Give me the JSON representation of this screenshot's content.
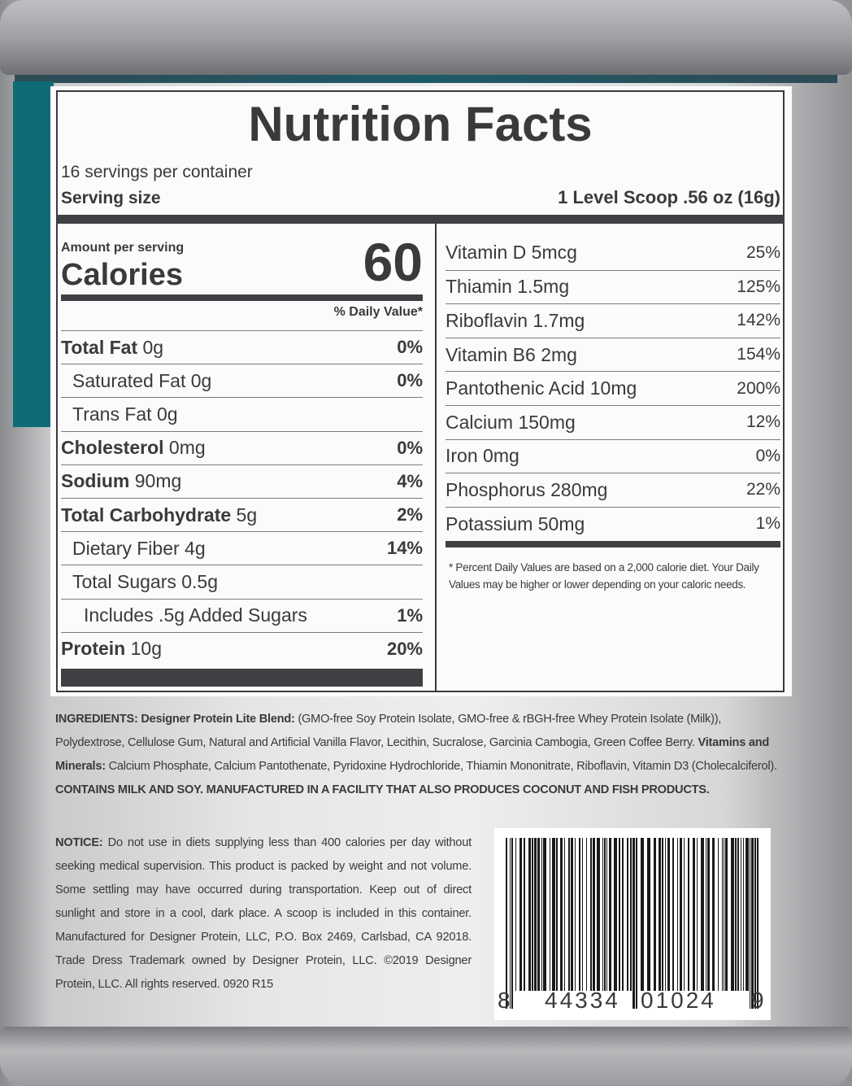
{
  "title": "Nutrition Facts",
  "servings": "16 servings per container",
  "serving_size": {
    "label": "Serving size",
    "value": "1 Level Scoop .56 oz (16g)"
  },
  "amount_per_serving": "Amount per serving",
  "calories": {
    "label": "Calories",
    "value": 60
  },
  "daily_value_header": "% Daily Value*",
  "nutrients": [
    {
      "name": "Total Fat",
      "amount": "0g",
      "dv": "0%",
      "bold": true,
      "indent": 0
    },
    {
      "name": "Saturated Fat",
      "amount": "0g",
      "dv": "0%",
      "bold": false,
      "indent": 1
    },
    {
      "name": "Trans Fat",
      "amount": "0g",
      "bold": false,
      "indent": 1
    },
    {
      "name": "Cholesterol",
      "amount": "0mg",
      "dv": "0%",
      "bold": true,
      "indent": 0
    },
    {
      "name": "Sodium",
      "amount": "90mg",
      "dv": "4%",
      "bold": true,
      "indent": 0
    },
    {
      "name": "Total Carbohydrate",
      "amount": "5g",
      "dv": "2%",
      "bold": true,
      "indent": 0
    },
    {
      "name": "Dietary Fiber",
      "amount": "4g",
      "dv": "14%",
      "bold": false,
      "indent": 1
    },
    {
      "name": "Total Sugars",
      "amount": "0.5g",
      "bold": false,
      "indent": 1
    },
    {
      "name": "Includes .5g Added Sugars",
      "amount": "",
      "dv": "1%",
      "bold": false,
      "indent": 2
    },
    {
      "name": "Protein",
      "amount": "10g",
      "dv": "20%",
      "bold": true,
      "indent": 0
    }
  ],
  "vitamins": [
    {
      "name": "Vitamin D",
      "amount": "5mcg",
      "dv": "25%"
    },
    {
      "name": "Thiamin",
      "amount": "1.5mg",
      "dv": "125%"
    },
    {
      "name": "Riboflavin",
      "amount": "1.7mg",
      "dv": "142%"
    },
    {
      "name": "Vitamin B6",
      "amount": "2mg",
      "dv": "154%"
    },
    {
      "name": "Pantothenic Acid",
      "amount": "10mg",
      "dv": "200%"
    },
    {
      "name": "Calcium",
      "amount": "150mg",
      "dv": "12%"
    },
    {
      "name": "Iron",
      "amount": "0mg",
      "dv": "0%"
    },
    {
      "name": "Phosphorus",
      "amount": "280mg",
      "dv": "22%"
    },
    {
      "name": "Potassium",
      "amount": "50mg",
      "dv": "1%"
    }
  ],
  "footnote": "* Percent Daily Values are based on a 2,000 calorie diet. Your Daily Values may be higher or lower depending on your caloric needs.",
  "ingredients": [
    {
      "text": "INGREDIENTS: Designer Protein Lite Blend:",
      "bold": true
    },
    {
      "text": " (GMO-free Soy Protein Isolate, GMO-free & rBGH-free Whey Protein Isolate (Milk)), Polydextrose, Cellulose Gum, Natural and Artificial Vanilla Flavor, Lecithin, Sucralose, Garcinia Cambogia, Green Coffee Berry. ",
      "bold": false
    },
    {
      "text": "Vitamins and Minerals:",
      "bold": true
    },
    {
      "text": " Calcium Phosphate, Calcium Pantothenate, Pyridoxine Hydrochloride, Thiamin Mononitrate, Riboflavin, Vitamin D3 (Cholecalciferol). ",
      "bold": false
    },
    {
      "text": "CONTAINS MILK AND SOY. MANUFACTURED IN A FACILITY THAT ALSO PRODUCES COCONUT AND FISH PRODUCTS.",
      "bold": true
    }
  ],
  "notice": [
    {
      "text": "NOTICE:",
      "bold": true
    },
    {
      "text": " Do not use in diets supplying less than 400 calories per day without seeking medical supervision. This product is packed by weight and not volume. Some settling may have occurred during transportation. Keep out of direct sunlight and store in a cool, dark place. A scoop is included in this container. Manufactured for Designer Protein, LLC, P.O. Box 2469, Carlsbad, CA 92018. Trade Dress Trademark owned by Designer Protein, LLC. ©2019 Designer Protein, LLC. All rights reserved. 0920 R15",
      "bold": false
    }
  ],
  "barcode": [
    "8",
    "44334",
    "01024",
    "9"
  ]
}
